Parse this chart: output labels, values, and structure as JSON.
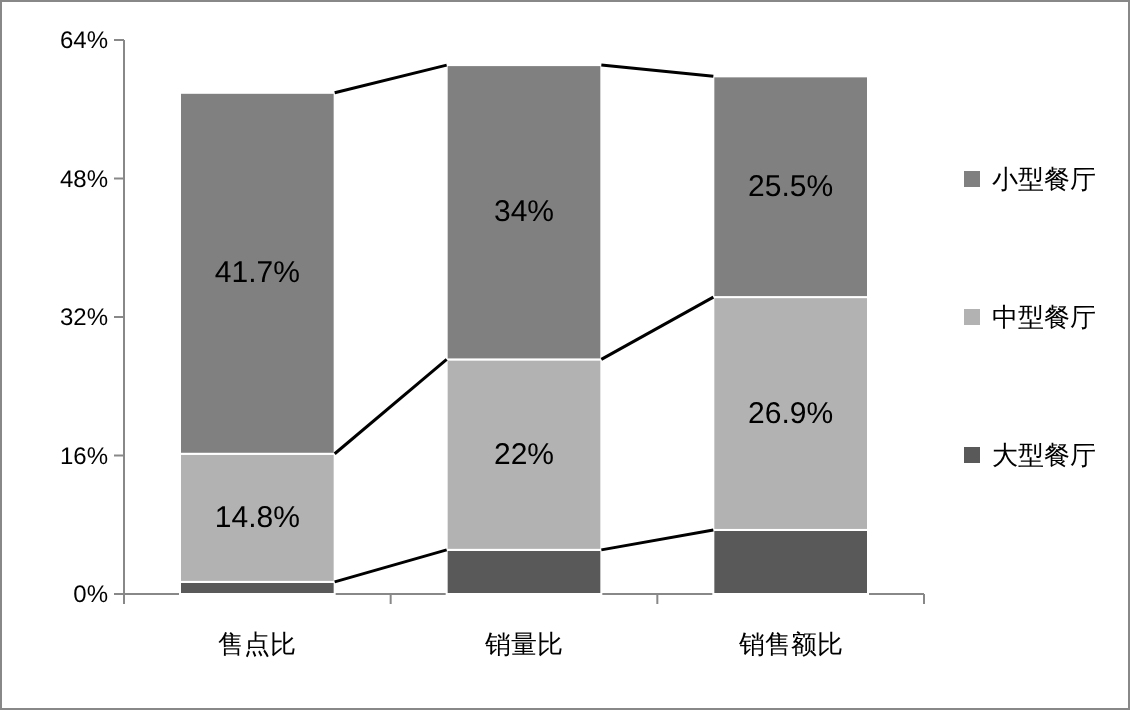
{
  "chart_data": {
    "type": "bar",
    "stacked": true,
    "categories": [
      "售点比",
      "销量比",
      "销售额比"
    ],
    "series": [
      {
        "name": "大型餐厅",
        "color": "#595959",
        "values": [
          1.4,
          5.1,
          7.4
        ],
        "value_labels": [
          null,
          null,
          null
        ]
      },
      {
        "name": "中型餐厅",
        "color": "#b2b2b2",
        "values": [
          14.8,
          22,
          26.9
        ],
        "value_labels": [
          "14.8%",
          "22%",
          "26.9%"
        ]
      },
      {
        "name": "小型餐厅",
        "color": "#808080",
        "values": [
          41.7,
          34,
          25.5
        ],
        "value_labels": [
          "41.7%",
          "34%",
          "25.5%"
        ]
      }
    ],
    "ylim": [
      0,
      64
    ],
    "yticks": [
      {
        "value": 0,
        "label": "0%"
      },
      {
        "value": 16,
        "label": "16%"
      },
      {
        "value": 32,
        "label": "32%"
      },
      {
        "value": 48,
        "label": "48%"
      },
      {
        "value": 64,
        "label": "64%"
      }
    ],
    "grid": false,
    "legend": "right"
  }
}
